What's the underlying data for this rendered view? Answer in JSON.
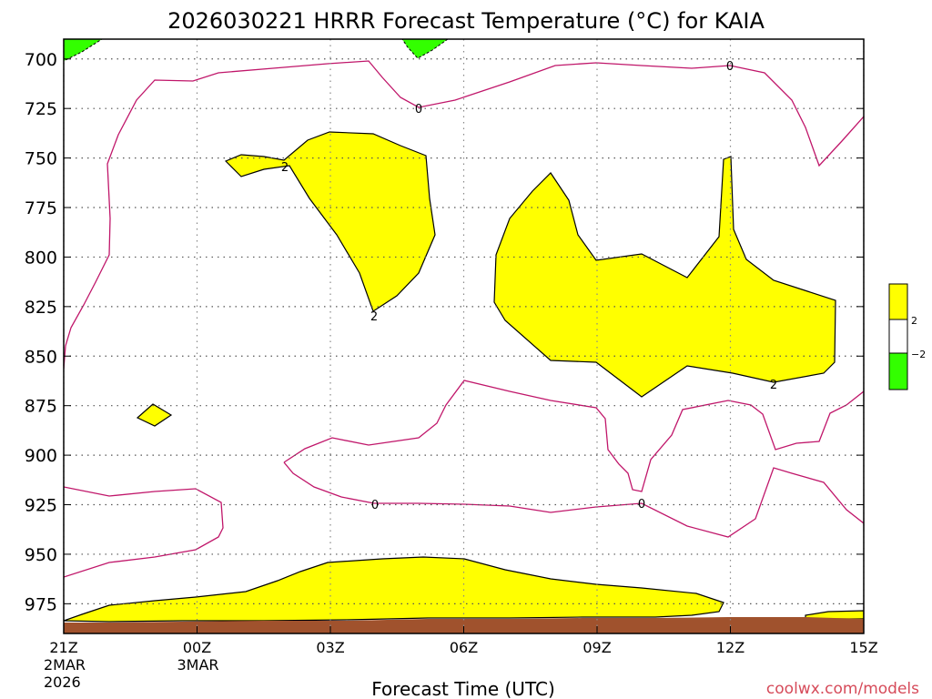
{
  "chart_data": {
    "type": "contour",
    "title": "2026030221 HRRR Forecast Temperature (°C) for KAIA",
    "xlabel": "Forecast Time (UTC)",
    "ylabel": "",
    "y_scale": "pressure (hPa), increasing downward",
    "ylim": [
      690,
      990
    ],
    "xlim": [
      0,
      18
    ],
    "y_ticks": [
      700,
      725,
      750,
      775,
      800,
      825,
      850,
      875,
      900,
      925,
      950,
      975
    ],
    "x_ticks": [
      {
        "x": 0,
        "label": "21Z",
        "sub1": "2MAR",
        "sub2": "2026"
      },
      {
        "x": 3,
        "label": "00Z",
        "sub1": "3MAR",
        "sub2": ""
      },
      {
        "x": 6,
        "label": "03Z",
        "sub1": "",
        "sub2": ""
      },
      {
        "x": 9,
        "label": "06Z",
        "sub1": "",
        "sub2": ""
      },
      {
        "x": 12,
        "label": "09Z",
        "sub1": "",
        "sub2": ""
      },
      {
        "x": 15,
        "label": "12Z",
        "sub1": "",
        "sub2": ""
      },
      {
        "x": 18,
        "label": "15Z",
        "sub1": "",
        "sub2": ""
      }
    ],
    "grid": true,
    "credit": "coolwx.com/models",
    "legend": {
      "placement": "right",
      "entries": [
        {
          "label": "2",
          "color": "#ffff00"
        },
        {
          "label": "",
          "color": "#ffffff"
        },
        {
          "label": "−2",
          "color": "#33ff00"
        }
      ]
    },
    "colors": {
      "warm_fill": "#ffff00",
      "cold_fill": "#33ff00",
      "zero_line": "#c0166a",
      "ground": "#a0522d"
    },
    "contour_labels": [
      {
        "x": 16.5,
        "y": 733,
        "text": "0"
      },
      {
        "x": 12.3,
        "y": 719,
        "text": "0"
      },
      {
        "x": 12.2,
        "y": 912,
        "text": "0"
      },
      {
        "x": 18.0,
        "y": 1920,
        "text": "0"
      },
      {
        "x": 7.0,
        "y": 747,
        "text": "2"
      },
      {
        "x": 7.7,
        "y": 833,
        "text": "2"
      },
      {
        "x": 17.1,
        "y": 902,
        "text": "2"
      }
    ]
  }
}
